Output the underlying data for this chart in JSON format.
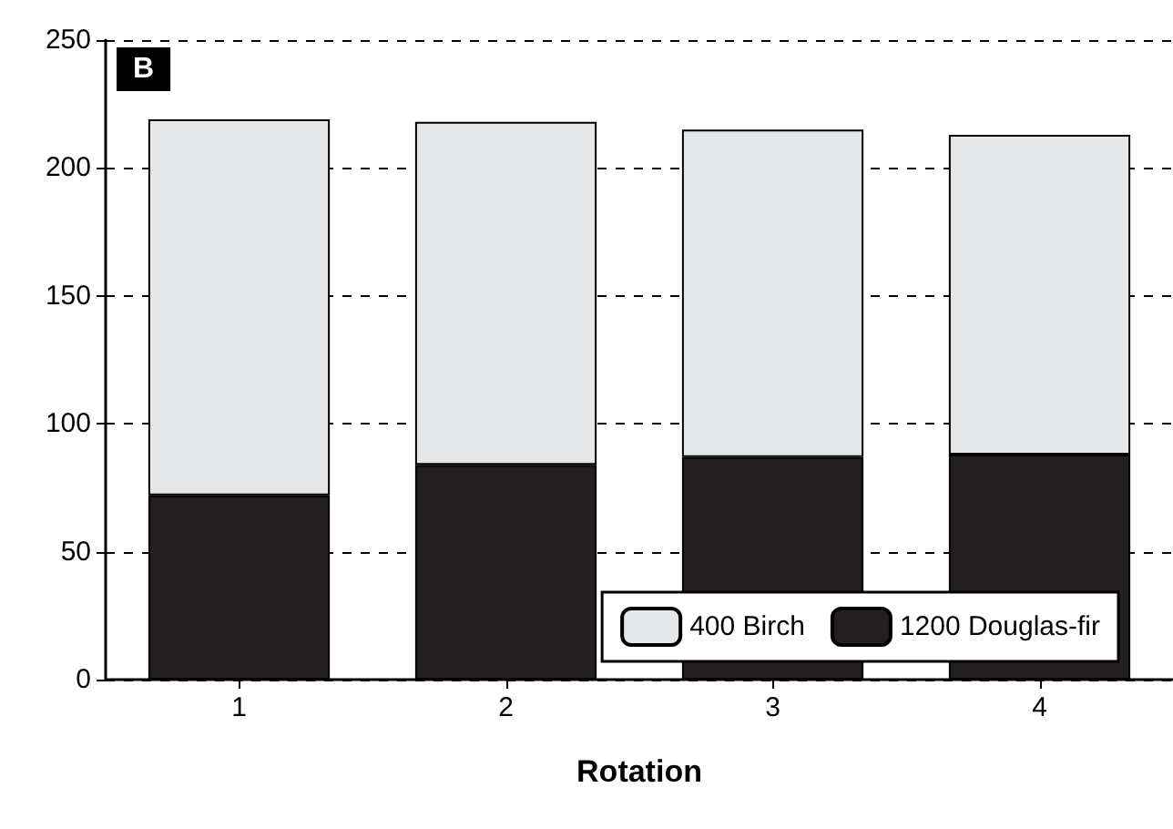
{
  "chart_data": {
    "type": "bar",
    "stacked": true,
    "xlabel": "Rotation",
    "categories": [
      "1",
      "2",
      "3",
      "4"
    ],
    "series": [
      {
        "name": "1200 Douglas-fir",
        "color": "#231f20",
        "values": [
          72,
          84,
          87,
          88
        ]
      },
      {
        "name": "400 Birch",
        "color": "#e6e7e8",
        "values": [
          147,
          134,
          128,
          125
        ]
      }
    ],
    "ylim": [
      0,
      250
    ],
    "yticks": [
      0,
      50,
      100,
      150,
      200,
      250
    ],
    "grid": "y",
    "legend": "bottom right",
    "annotations": [
      "B"
    ]
  }
}
